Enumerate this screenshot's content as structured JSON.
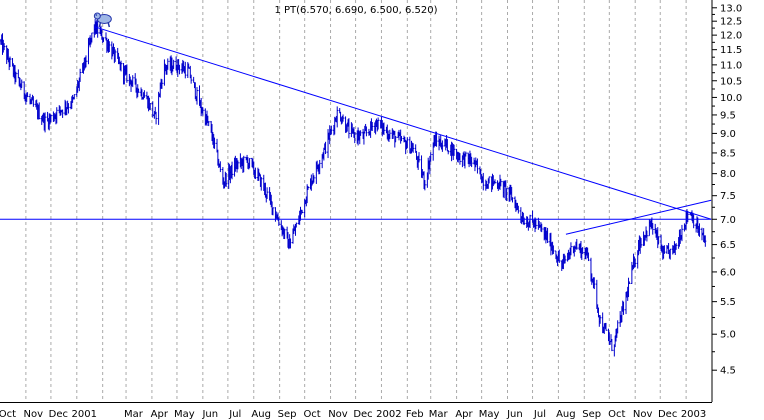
{
  "chart_data": {
    "type": "bar",
    "subtype": "ohlc-price-bars",
    "title": "1 PT(6.570, 6.690, 6.500, 6.520)",
    "title_ohlc": {
      "open": 6.57,
      "high": 6.69,
      "low": 6.5,
      "close": 6.52
    },
    "xlabel": "",
    "ylabel": "",
    "ylim": [
      4.1,
      13.3
    ],
    "y_scale": "log",
    "y_axis_position": "right",
    "y_ticks": [
      4.5,
      5.0,
      5.5,
      6.0,
      6.5,
      7.0,
      7.5,
      8.0,
      8.5,
      9.0,
      9.5,
      10.0,
      10.5,
      11.0,
      11.5,
      12.0,
      12.5,
      13.0
    ],
    "y_tick_labels": [
      "4.5",
      "5.0",
      "5.5",
      "6.0",
      "6.5",
      "7.0",
      "7.5",
      "8.0",
      "8.5",
      "9.0",
      "9.5",
      "10.0",
      "10.5",
      "11.0",
      "11.5",
      "12.0",
      "12.5",
      "13.0"
    ],
    "x_tick_labels": [
      "Oct",
      "Nov",
      "Dec",
      "2001",
      "Mar",
      "Apr",
      "May",
      "Jun",
      "Jul",
      "Aug",
      "Sep",
      "Oct",
      "Nov",
      "Dec",
      "2002",
      "Feb",
      "Mar",
      "Apr",
      "May",
      "Jun",
      "Jul",
      "Aug",
      "Sep",
      "Oct",
      "Nov",
      "Dec",
      "2003"
    ],
    "x_range_months": [
      "2000-10",
      "2003-01"
    ],
    "grid": "vertical-dashed",
    "price_path": [
      [
        "2000-10-01",
        11.8
      ],
      [
        "2000-10-20",
        10.6
      ],
      [
        "2000-11-05",
        9.9
      ],
      [
        "2000-11-25",
        9.3
      ],
      [
        "2000-12-10",
        9.6
      ],
      [
        "2000-12-28",
        9.9
      ],
      [
        "2001-01-12",
        11.2
      ],
      [
        "2001-01-22",
        12.3
      ],
      [
        "2001-02-05",
        11.8
      ],
      [
        "2001-02-25",
        10.8
      ],
      [
        "2001-03-10",
        10.4
      ],
      [
        "2001-03-25",
        10.0
      ],
      [
        "2001-04-05",
        9.4
      ],
      [
        "2001-04-15",
        10.9
      ],
      [
        "2001-05-01",
        11.0
      ],
      [
        "2001-05-15",
        10.8
      ],
      [
        "2001-05-28",
        9.8
      ],
      [
        "2001-06-10",
        9.1
      ],
      [
        "2001-06-25",
        7.8
      ],
      [
        "2001-07-10",
        8.2
      ],
      [
        "2001-07-25",
        8.3
      ],
      [
        "2001-08-10",
        7.8
      ],
      [
        "2001-08-25",
        7.2
      ],
      [
        "2001-09-12",
        6.5
      ],
      [
        "2001-09-22",
        6.9
      ],
      [
        "2001-10-08",
        7.8
      ],
      [
        "2001-10-25",
        8.6
      ],
      [
        "2001-11-10",
        9.6
      ],
      [
        "2001-11-25",
        9.0
      ],
      [
        "2001-12-10",
        8.9
      ],
      [
        "2001-12-25",
        9.3
      ],
      [
        "2002-01-10",
        9.0
      ],
      [
        "2002-01-25",
        8.8
      ],
      [
        "2002-02-08",
        8.6
      ],
      [
        "2002-02-22",
        7.8
      ],
      [
        "2002-03-05",
        8.8
      ],
      [
        "2002-03-20",
        8.7
      ],
      [
        "2002-04-05",
        8.4
      ],
      [
        "2002-04-20",
        8.3
      ],
      [
        "2002-05-05",
        7.8
      ],
      [
        "2002-05-20",
        7.8
      ],
      [
        "2002-06-05",
        7.5
      ],
      [
        "2002-06-20",
        7.0
      ],
      [
        "2002-07-05",
        6.9
      ],
      [
        "2002-07-20",
        6.6
      ],
      [
        "2002-08-05",
        6.1
      ],
      [
        "2002-08-20",
        6.5
      ],
      [
        "2002-09-05",
        6.3
      ],
      [
        "2002-09-20",
        5.2
      ],
      [
        "2002-10-05",
        4.8
      ],
      [
        "2002-10-20",
        5.5
      ],
      [
        "2002-11-05",
        6.5
      ],
      [
        "2002-11-20",
        6.9
      ],
      [
        "2002-12-05",
        6.3
      ],
      [
        "2002-12-18",
        6.4
      ],
      [
        "2003-01-05",
        7.2
      ],
      [
        "2003-01-15",
        6.8
      ],
      [
        "2003-01-24",
        6.55
      ]
    ],
    "trendlines": [
      {
        "from": [
          "2001-01-22",
          12.3
        ],
        "to": [
          "2003-01-31",
          7.0
        ]
      },
      {
        "from": [
          "2000-10-01",
          7.0
        ],
        "to": [
          "2003-01-31",
          7.0
        ]
      },
      {
        "from": [
          "2002-08-10",
          6.7
        ],
        "to": [
          "2003-01-31",
          7.4
        ]
      }
    ],
    "marker": {
      "type": "bear-icon",
      "at": [
        "2001-01-22",
        12.3
      ]
    },
    "colors": {
      "bars": "#0000cc",
      "lines": "#0000ff",
      "grid": "#aaaaaa",
      "frame": "#000000",
      "background": "#ffffff"
    }
  }
}
